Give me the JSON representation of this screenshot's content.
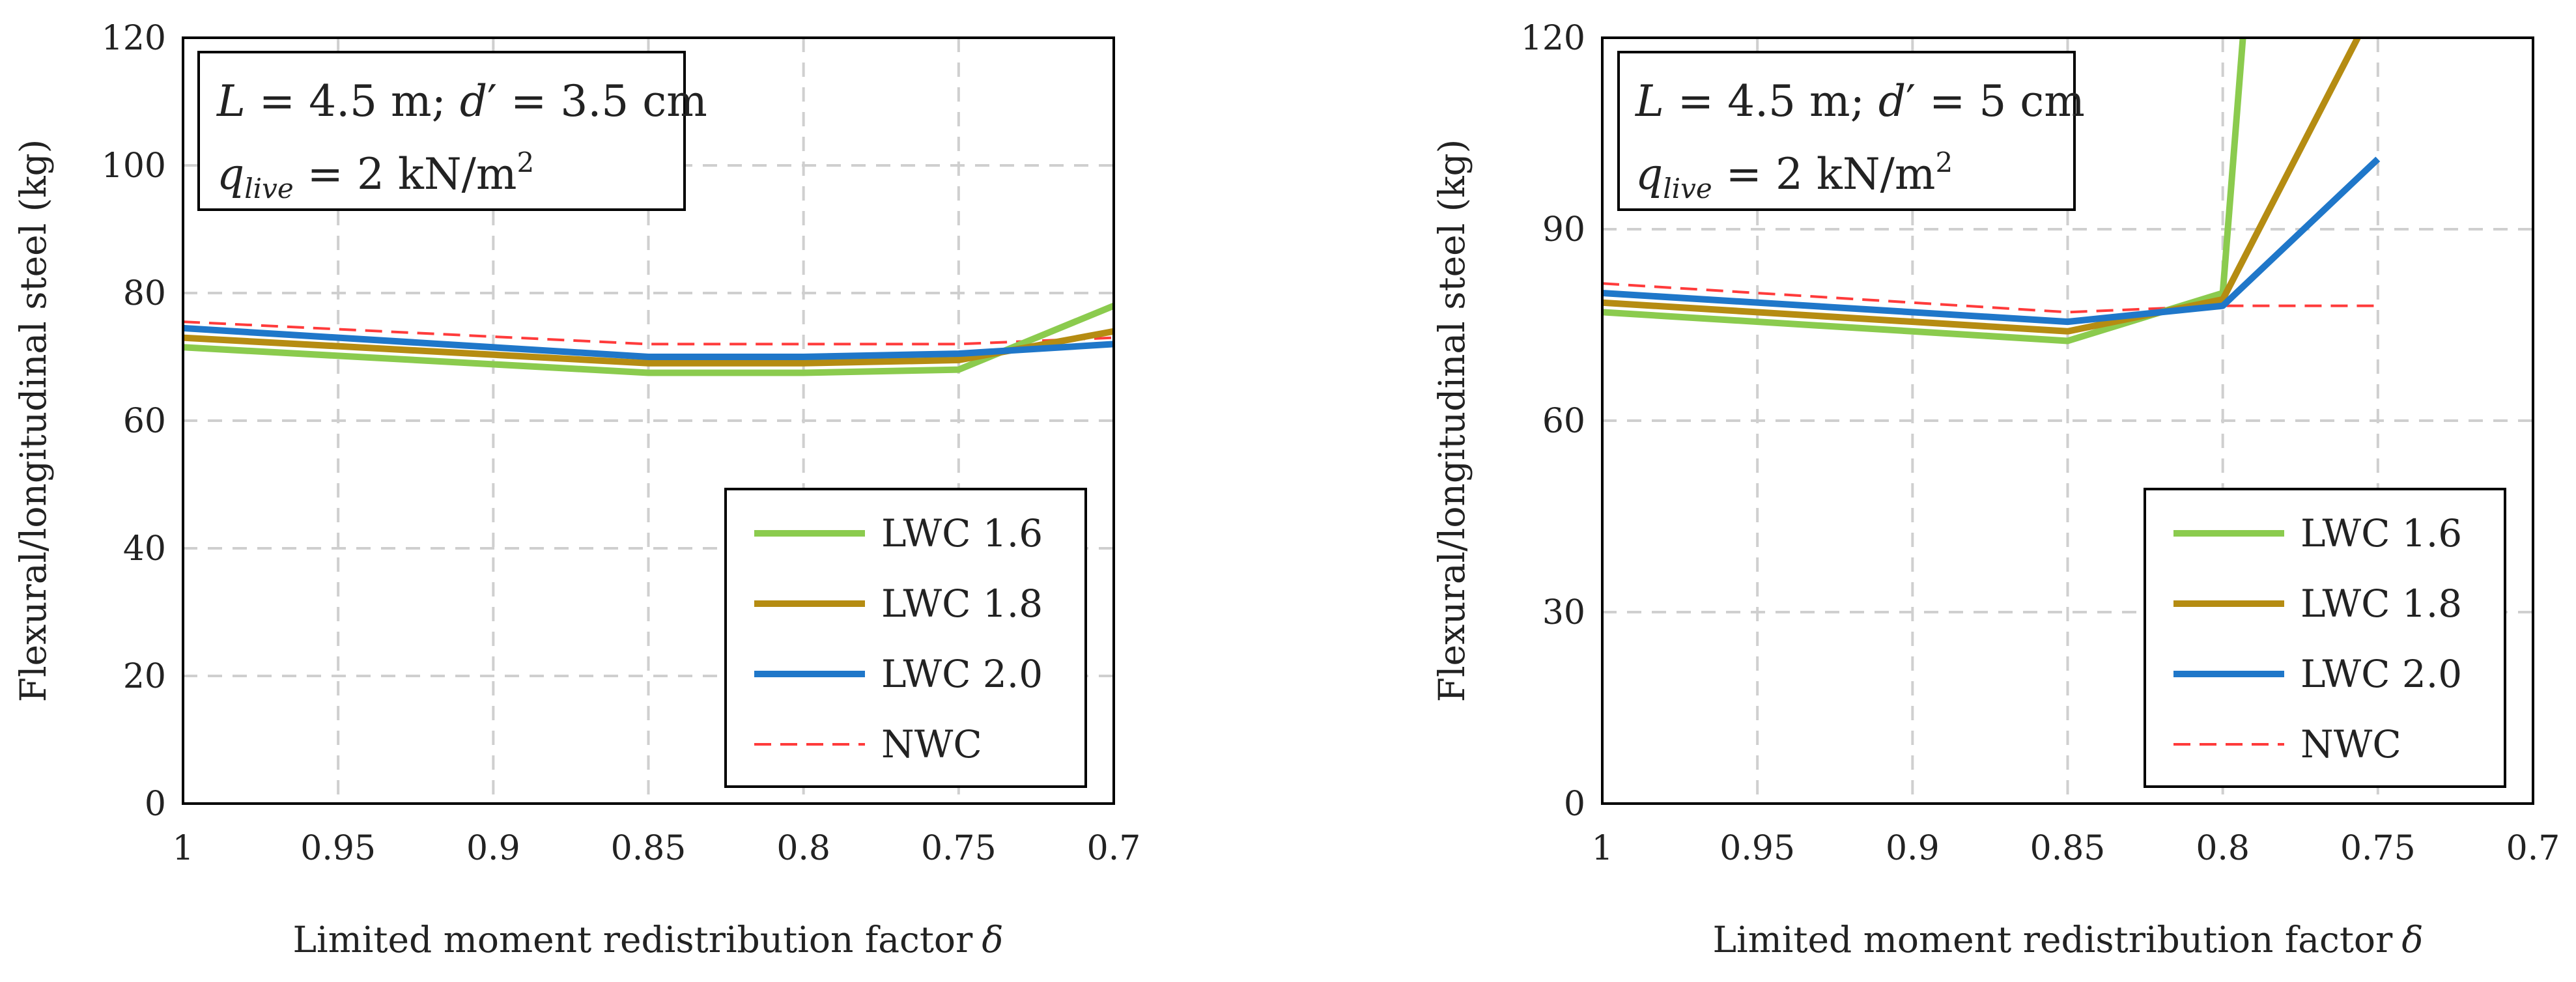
{
  "chart_data": [
    {
      "type": "line",
      "id": "left",
      "annotation": {
        "line1": {
          "L_symbol": "L",
          "L_text": " = 4.5 m; ",
          "d_symbol": "d",
          "d_text": "′ = 3.5 cm"
        },
        "line2": {
          "q_symbol": "q",
          "q_sub": "live",
          "q_text": " = 2 kN/m",
          "q_sup": "2"
        }
      },
      "xlabel": "Limited moment redistribution factor",
      "xlabel_symbol": "δ",
      "ylabel": "Flexural/longitudinal steel (kg)",
      "xlim": [
        1,
        0.7
      ],
      "ylim": [
        0,
        120
      ],
      "x_ticks": [
        1,
        0.95,
        0.9,
        0.85,
        0.8,
        0.75,
        0.7
      ],
      "x_tick_labels": [
        "1",
        "0.95",
        "0.9",
        "0.85",
        "0.8",
        "0.75",
        "0.7"
      ],
      "y_ticks": [
        0,
        20,
        40,
        60,
        80,
        100,
        120
      ],
      "y_tick_labels": [
        "0",
        "20",
        "40",
        "60",
        "80",
        "100",
        "120"
      ],
      "grid": true,
      "legend_position": "bottom-right",
      "series": [
        {
          "name": "LWC 1.6",
          "color": "#8BCB4E",
          "dashed": false,
          "x": [
            1,
            0.85,
            0.8,
            0.75,
            0.7
          ],
          "values": [
            71.5,
            67.5,
            67.5,
            68,
            78
          ]
        },
        {
          "name": "LWC 1.8",
          "color": "#B58C12",
          "dashed": false,
          "x": [
            1,
            0.85,
            0.8,
            0.75,
            0.7
          ],
          "values": [
            73,
            69,
            69,
            69.5,
            74
          ]
        },
        {
          "name": "LWC 2.0",
          "color": "#1F77C9",
          "dashed": false,
          "x": [
            1,
            0.85,
            0.8,
            0.75,
            0.7
          ],
          "values": [
            74.5,
            70,
            70,
            70.5,
            72
          ]
        },
        {
          "name": "NWC",
          "color": "#FF3B3B",
          "dashed": true,
          "x": [
            1,
            0.85,
            0.8,
            0.75,
            0.7
          ],
          "values": [
            75.5,
            72,
            72,
            72,
            73
          ]
        }
      ]
    },
    {
      "type": "line",
      "id": "right",
      "annotation": {
        "line1": {
          "L_symbol": "L",
          "L_text": " = 4.5 m; ",
          "d_symbol": "d",
          "d_text": "′ = 5 cm"
        },
        "line2": {
          "q_symbol": "q",
          "q_sub": "live",
          "q_text": " = 2 kN/m",
          "q_sup": "2"
        }
      },
      "xlabel": "Limited moment redistribution factor",
      "xlabel_symbol": "δ",
      "ylabel": "Flexural/longitudinal steel (kg)",
      "xlim": [
        1,
        0.7
      ],
      "ylim": [
        0,
        120
      ],
      "x_ticks": [
        1,
        0.95,
        0.9,
        0.85,
        0.8,
        0.75,
        0.7
      ],
      "x_tick_labels": [
        "1",
        "0.95",
        "0.9",
        "0.85",
        "0.8",
        "0.75",
        "0.7"
      ],
      "y_ticks": [
        0,
        30,
        60,
        90,
        120
      ],
      "y_tick_labels": [
        "0",
        "30",
        "60",
        "90",
        "120"
      ],
      "grid": true,
      "legend_position": "bottom-right",
      "series": [
        {
          "name": "LWC 1.6",
          "color": "#8BCB4E",
          "dashed": false,
          "x": [
            1,
            0.85,
            0.8,
            0.7935
          ],
          "values": [
            77,
            72.5,
            80,
            120
          ]
        },
        {
          "name": "LWC 1.8",
          "color": "#B58C12",
          "dashed": false,
          "x": [
            1,
            0.85,
            0.8,
            0.7565
          ],
          "values": [
            78.5,
            74,
            79,
            120
          ]
        },
        {
          "name": "LWC 2.0",
          "color": "#1F77C9",
          "dashed": false,
          "x": [
            1,
            0.85,
            0.8,
            0.75
          ],
          "values": [
            80,
            75.5,
            78,
            101
          ]
        },
        {
          "name": "NWC",
          "color": "#FF3B3B",
          "dashed": true,
          "x": [
            1,
            0.85,
            0.8,
            0.75
          ],
          "values": [
            81.5,
            77,
            78,
            78
          ]
        }
      ]
    }
  ]
}
